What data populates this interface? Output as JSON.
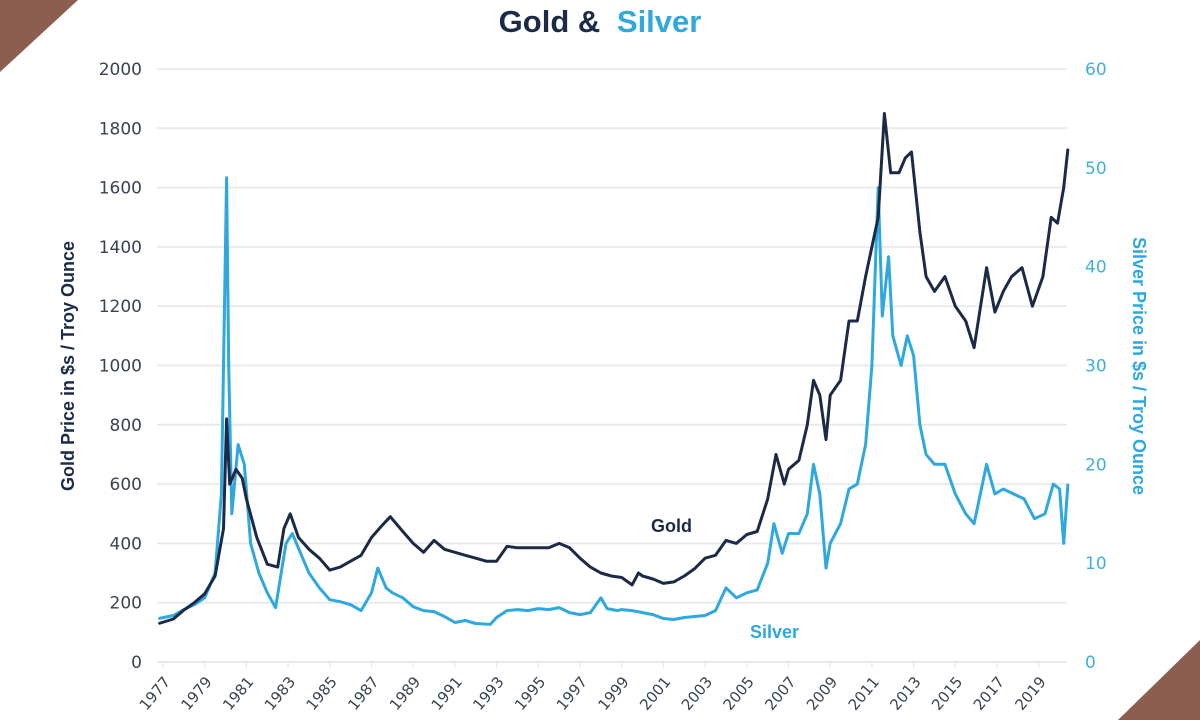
{
  "chart_data": {
    "type": "line",
    "title_part1": "Gold &",
    "title_part2": "Silver",
    "ylabel": "Gold Price in $s / Troy Ounce",
    "ylabel_right": "Silver Price in $s / Troy Ounce",
    "ylim": [
      0,
      2000
    ],
    "ylim_right": [
      0,
      60
    ],
    "yticks": [
      "0",
      "200",
      "400",
      "600",
      "800",
      "1000",
      "1200",
      "1400",
      "1600",
      "1800",
      "2000"
    ],
    "yticks_right": [
      "0",
      "10",
      "20",
      "30",
      "40",
      "50",
      "60"
    ],
    "xticks": [
      "1977",
      "1979",
      "1981",
      "1983",
      "1985",
      "1987",
      "1989",
      "1991",
      "1993",
      "1995",
      "1997",
      "1999",
      "2001",
      "2003",
      "2005",
      "2007",
      "2009",
      "2011",
      "2013",
      "2015",
      "2017",
      "2019"
    ],
    "grid": true,
    "colors": {
      "gold": "#1b2a47",
      "silver": "#2ea8de",
      "corner": "#8b5e4f"
    },
    "series": [
      {
        "name": "Gold",
        "axis": "left",
        "points": [
          [
            1976.8,
            130
          ],
          [
            1977.5,
            145
          ],
          [
            1978,
            175
          ],
          [
            1978.5,
            200
          ],
          [
            1979,
            230
          ],
          [
            1979.5,
            290
          ],
          [
            1979.9,
            450
          ],
          [
            1980.05,
            820
          ],
          [
            1980.2,
            600
          ],
          [
            1980.5,
            650
          ],
          [
            1980.8,
            620
          ],
          [
            1981,
            550
          ],
          [
            1981.5,
            420
          ],
          [
            1982,
            330
          ],
          [
            1982.5,
            320
          ],
          [
            1982.8,
            450
          ],
          [
            1983.1,
            500
          ],
          [
            1983.5,
            420
          ],
          [
            1984,
            380
          ],
          [
            1984.5,
            350
          ],
          [
            1985,
            310
          ],
          [
            1985.5,
            320
          ],
          [
            1986,
            340
          ],
          [
            1986.5,
            360
          ],
          [
            1987,
            420
          ],
          [
            1987.5,
            460
          ],
          [
            1987.9,
            490
          ],
          [
            1988.5,
            440
          ],
          [
            1989,
            400
          ],
          [
            1989.5,
            370
          ],
          [
            1990,
            410
          ],
          [
            1990.5,
            380
          ],
          [
            1991,
            370
          ],
          [
            1991.5,
            360
          ],
          [
            1992,
            350
          ],
          [
            1992.5,
            340
          ],
          [
            1993,
            340
          ],
          [
            1993.5,
            390
          ],
          [
            1994,
            385
          ],
          [
            1994.5,
            385
          ],
          [
            1995,
            385
          ],
          [
            1995.5,
            385
          ],
          [
            1996,
            400
          ],
          [
            1996.5,
            385
          ],
          [
            1997,
            350
          ],
          [
            1997.5,
            320
          ],
          [
            1998,
            300
          ],
          [
            1998.5,
            290
          ],
          [
            1999,
            285
          ],
          [
            1999.5,
            260
          ],
          [
            1999.8,
            300
          ],
          [
            2000,
            290
          ],
          [
            2000.5,
            280
          ],
          [
            2001,
            265
          ],
          [
            2001.5,
            270
          ],
          [
            2002,
            290
          ],
          [
            2002.5,
            315
          ],
          [
            2003,
            350
          ],
          [
            2003.5,
            360
          ],
          [
            2004,
            410
          ],
          [
            2004.5,
            400
          ],
          [
            2005,
            430
          ],
          [
            2005.5,
            440
          ],
          [
            2006,
            550
          ],
          [
            2006.4,
            700
          ],
          [
            2006.8,
            600
          ],
          [
            2007,
            650
          ],
          [
            2007.5,
            680
          ],
          [
            2007.9,
            800
          ],
          [
            2008.2,
            950
          ],
          [
            2008.5,
            900
          ],
          [
            2008.8,
            750
          ],
          [
            2009,
            900
          ],
          [
            2009.5,
            950
          ],
          [
            2009.9,
            1150
          ],
          [
            2010.3,
            1150
          ],
          [
            2010.7,
            1300
          ],
          [
            2011,
            1400
          ],
          [
            2011.3,
            1500
          ],
          [
            2011.6,
            1850
          ],
          [
            2011.9,
            1650
          ],
          [
            2012.3,
            1650
          ],
          [
            2012.6,
            1700
          ],
          [
            2012.9,
            1720
          ],
          [
            2013.3,
            1450
          ],
          [
            2013.6,
            1300
          ],
          [
            2014,
            1250
          ],
          [
            2014.5,
            1300
          ],
          [
            2015,
            1200
          ],
          [
            2015.5,
            1150
          ],
          [
            2015.9,
            1060
          ],
          [
            2016.5,
            1330
          ],
          [
            2016.9,
            1180
          ],
          [
            2017.3,
            1250
          ],
          [
            2017.7,
            1300
          ],
          [
            2018.2,
            1330
          ],
          [
            2018.7,
            1200
          ],
          [
            2019.2,
            1300
          ],
          [
            2019.6,
            1500
          ],
          [
            2019.9,
            1480
          ],
          [
            2020.2,
            1600
          ],
          [
            2020.4,
            1730
          ]
        ]
      },
      {
        "name": "Silver",
        "axis": "right",
        "points": [
          [
            1976.8,
            4.4
          ],
          [
            1977.5,
            4.7
          ],
          [
            1978,
            5.3
          ],
          [
            1978.5,
            5.8
          ],
          [
            1979,
            6.5
          ],
          [
            1979.5,
            9
          ],
          [
            1979.8,
            17
          ],
          [
            1980.05,
            49
          ],
          [
            1980.15,
            30
          ],
          [
            1980.3,
            15
          ],
          [
            1980.6,
            22
          ],
          [
            1980.9,
            20
          ],
          [
            1981.2,
            12
          ],
          [
            1981.6,
            9
          ],
          [
            1982,
            7
          ],
          [
            1982.4,
            5.5
          ],
          [
            1982.9,
            12
          ],
          [
            1983.2,
            13
          ],
          [
            1983.6,
            11
          ],
          [
            1984,
            9
          ],
          [
            1984.5,
            7.5
          ],
          [
            1985,
            6.3
          ],
          [
            1985.5,
            6.1
          ],
          [
            1986,
            5.8
          ],
          [
            1986.5,
            5.2
          ],
          [
            1987,
            7
          ],
          [
            1987.3,
            9.5
          ],
          [
            1987.7,
            7.5
          ],
          [
            1988,
            7
          ],
          [
            1988.5,
            6.5
          ],
          [
            1989,
            5.6
          ],
          [
            1989.5,
            5.2
          ],
          [
            1990,
            5.1
          ],
          [
            1990.5,
            4.6
          ],
          [
            1991,
            4
          ],
          [
            1991.5,
            4.2
          ],
          [
            1992,
            3.9
          ],
          [
            1992.7,
            3.8
          ],
          [
            1993,
            4.5
          ],
          [
            1993.5,
            5.2
          ],
          [
            1994,
            5.3
          ],
          [
            1994.5,
            5.2
          ],
          [
            1995,
            5.4
          ],
          [
            1995.5,
            5.3
          ],
          [
            1996,
            5.5
          ],
          [
            1996.5,
            5
          ],
          [
            1997,
            4.8
          ],
          [
            1997.5,
            5
          ],
          [
            1998,
            6.5
          ],
          [
            1998.3,
            5.4
          ],
          [
            1998.8,
            5.2
          ],
          [
            1999,
            5.3
          ],
          [
            1999.5,
            5.2
          ],
          [
            2000,
            5
          ],
          [
            2000.5,
            4.8
          ],
          [
            2001,
            4.4
          ],
          [
            2001.5,
            4.3
          ],
          [
            2002,
            4.5
          ],
          [
            2002.5,
            4.6
          ],
          [
            2003,
            4.7
          ],
          [
            2003.5,
            5.2
          ],
          [
            2004,
            7.5
          ],
          [
            2004.5,
            6.5
          ],
          [
            2005,
            7
          ],
          [
            2005.5,
            7.3
          ],
          [
            2006,
            10
          ],
          [
            2006.3,
            14
          ],
          [
            2006.7,
            11
          ],
          [
            2007,
            13
          ],
          [
            2007.5,
            13
          ],
          [
            2007.9,
            15
          ],
          [
            2008.2,
            20
          ],
          [
            2008.5,
            17
          ],
          [
            2008.8,
            9.5
          ],
          [
            2009,
            12
          ],
          [
            2009.5,
            14
          ],
          [
            2009.9,
            17.5
          ],
          [
            2010.3,
            18
          ],
          [
            2010.7,
            22
          ],
          [
            2011,
            30
          ],
          [
            2011.3,
            48
          ],
          [
            2011.5,
            35
          ],
          [
            2011.8,
            41
          ],
          [
            2012,
            33
          ],
          [
            2012.4,
            30
          ],
          [
            2012.7,
            33
          ],
          [
            2013,
            31
          ],
          [
            2013.3,
            24
          ],
          [
            2013.6,
            21
          ],
          [
            2014,
            20
          ],
          [
            2014.5,
            20
          ],
          [
            2015,
            17
          ],
          [
            2015.5,
            15
          ],
          [
            2015.9,
            14
          ],
          [
            2016.5,
            20
          ],
          [
            2016.9,
            17
          ],
          [
            2017.3,
            17.5
          ],
          [
            2017.8,
            17
          ],
          [
            2018.3,
            16.5
          ],
          [
            2018.8,
            14.5
          ],
          [
            2019.3,
            15
          ],
          [
            2019.7,
            18
          ],
          [
            2020,
            17.5
          ],
          [
            2020.2,
            12
          ],
          [
            2020.4,
            18
          ]
        ]
      }
    ],
    "annotations": {
      "gold_label": "Gold",
      "silver_label": "Silver"
    }
  }
}
